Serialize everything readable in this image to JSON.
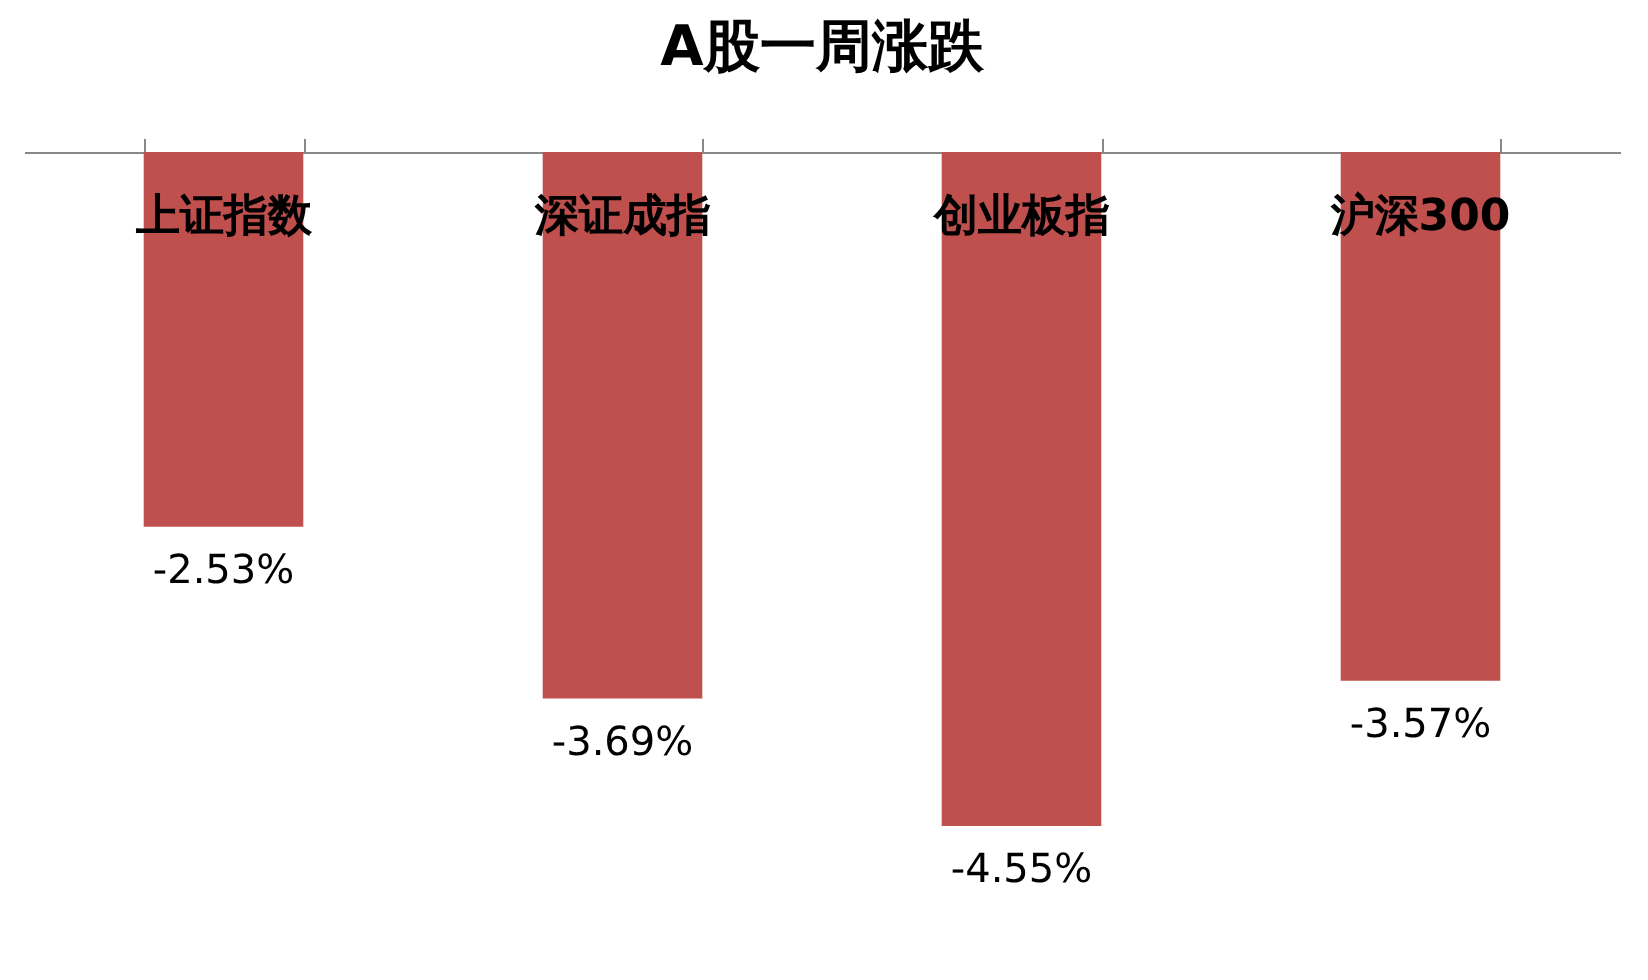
{
  "chart_data": {
    "type": "bar",
    "title": "A股一周涨跌",
    "categories": [
      "上证指数",
      "深证成指",
      "创业板指",
      "沪深300"
    ],
    "values": [
      -2.53,
      -3.69,
      -4.55,
      -3.57
    ],
    "value_labels": [
      "-2.53%",
      "-3.69%",
      "-4.55%",
      "-3.57%"
    ],
    "color": "#c0504d",
    "grid": false
  }
}
